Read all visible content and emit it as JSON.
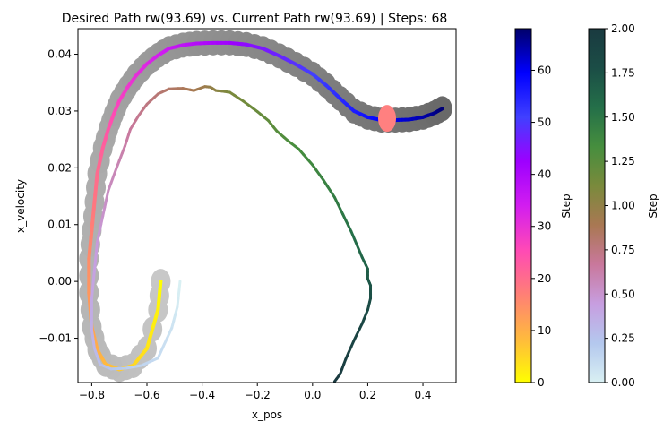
{
  "chart_data": {
    "type": "line",
    "title": "Desired Path rw(93.69) vs. Current Path rw(93.69) | Steps: 68",
    "xlabel": "x_pos",
    "ylabel": "x_velocity",
    "xlim": [
      -0.85,
      0.52
    ],
    "ylim": [
      -0.0178,
      0.0445
    ],
    "xticks": [
      "−0.8",
      "−0.6",
      "−0.4",
      "−0.2",
      "0.0",
      "0.2",
      "0.4"
    ],
    "xtick_values": [
      -0.8,
      -0.6,
      -0.4,
      -0.2,
      0.0,
      0.2,
      0.4
    ],
    "yticks": [
      "−0.01",
      "0.00",
      "0.01",
      "0.02",
      "0.03",
      "0.04"
    ],
    "ytick_values": [
      -0.01,
      0.0,
      0.01,
      0.02,
      0.03,
      0.04
    ],
    "grid": false,
    "series": [
      {
        "role": "desired-path",
        "color_scale": "gnuplot2_r (0 to 68 steps)",
        "x": [
          -0.55,
          -0.56,
          -0.6,
          -0.65,
          -0.7,
          -0.75,
          -0.78,
          -0.8,
          -0.81,
          -0.81,
          -0.8,
          -0.79,
          -0.78,
          -0.76,
          -0.74,
          -0.72,
          -0.7,
          -0.67,
          -0.64,
          -0.6,
          -0.56,
          -0.52,
          -0.47,
          -0.42,
          -0.36,
          -0.3,
          -0.24,
          -0.18,
          -0.12,
          -0.06,
          0.0,
          0.05,
          0.1,
          0.15,
          0.2,
          0.25,
          0.3,
          0.35,
          0.4,
          0.44,
          0.47
        ],
        "y": [
          0.0,
          -0.005,
          -0.0118,
          -0.0148,
          -0.0155,
          -0.0146,
          -0.012,
          -0.008,
          -0.002,
          0.004,
          0.009,
          0.014,
          0.019,
          0.0235,
          0.0268,
          0.0295,
          0.0318,
          0.0342,
          0.0362,
          0.0383,
          0.0398,
          0.041,
          0.0416,
          0.0419,
          0.042,
          0.042,
          0.0417,
          0.041,
          0.0397,
          0.0382,
          0.0365,
          0.0345,
          0.0322,
          0.03,
          0.0289,
          0.0284,
          0.0284,
          0.0285,
          0.0289,
          0.0296,
          0.0304
        ]
      },
      {
        "role": "current-path",
        "color_scale": "cubehelix_r (0 to 2)",
        "x": [
          -0.48,
          -0.49,
          -0.51,
          -0.56,
          -0.62,
          -0.68,
          -0.73,
          -0.77,
          -0.79,
          -0.8,
          -0.8,
          -0.79,
          -0.78,
          -0.76,
          -0.74,
          -0.71,
          -0.68,
          -0.66,
          -0.63,
          -0.6,
          -0.56,
          -0.52,
          -0.47,
          -0.43,
          -0.39,
          -0.37,
          -0.35,
          -0.33,
          -0.3,
          -0.25,
          -0.2,
          -0.16,
          -0.13,
          -0.09,
          -0.05,
          0.0,
          0.04,
          0.08,
          0.11,
          0.14,
          0.16,
          0.18,
          0.2,
          0.2,
          0.21,
          0.21,
          0.2,
          0.18,
          0.15,
          0.12,
          0.1,
          0.08
        ],
        "y": [
          0.0,
          -0.0045,
          -0.0082,
          -0.0135,
          -0.0148,
          -0.0153,
          -0.0154,
          -0.0146,
          -0.0118,
          -0.0085,
          -0.003,
          0.002,
          0.007,
          0.0115,
          0.016,
          0.02,
          0.0238,
          0.0268,
          0.0292,
          0.0312,
          0.033,
          0.0339,
          0.034,
          0.0336,
          0.0343,
          0.0342,
          0.0336,
          0.0335,
          0.0333,
          0.0317,
          0.0299,
          0.0283,
          0.0265,
          0.0248,
          0.0233,
          0.0205,
          0.0178,
          0.0148,
          0.0118,
          0.0088,
          0.0065,
          0.0042,
          0.0022,
          0.0005,
          -0.0007,
          -0.003,
          -0.005,
          -0.0074,
          -0.0104,
          -0.0137,
          -0.0163,
          -0.0176
        ]
      }
    ],
    "current_position": {
      "x": 0.27,
      "y": 0.0287,
      "color": "#ff8080"
    },
    "colorbars": [
      {
        "name": "step-colorbar",
        "label": "Step",
        "ticks": [
          "0",
          "10",
          "20",
          "30",
          "40",
          "50",
          "60"
        ],
        "tick_values": [
          0,
          10,
          20,
          30,
          40,
          50,
          60
        ],
        "range": [
          0,
          68
        ],
        "stops": [
          "#ffff00",
          "#ffb93e",
          "#ff7f76",
          "#ff49b6",
          "#d21df0",
          "#9d00ff",
          "#4040ff",
          "#0000ff",
          "#00006a"
        ]
      },
      {
        "name": "reward-colorbar",
        "label": "Step",
        "ticks": [
          "0.00",
          "0.25",
          "0.50",
          "0.75",
          "1.00",
          "1.25",
          "1.50",
          "1.75",
          "2.00"
        ],
        "tick_values": [
          0,
          0.25,
          0.5,
          0.75,
          1.0,
          1.25,
          1.5,
          1.75,
          2.0
        ],
        "range": [
          0,
          2
        ],
        "stops": [
          "#d9f0f3",
          "#b4c8ee",
          "#c79ee0",
          "#c9789c",
          "#a97853",
          "#7a8a3c",
          "#468e3e",
          "#246f49",
          "#1b4d46",
          "#1a3a40"
        ]
      }
    ]
  }
}
